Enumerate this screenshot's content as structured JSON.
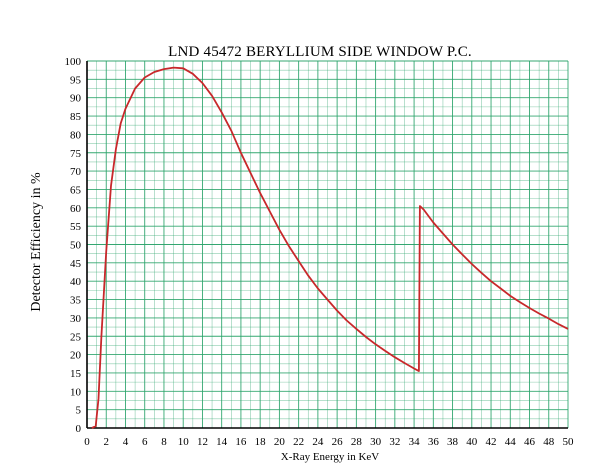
{
  "chart_data": {
    "type": "line",
    "title": "LND 45472 BERYLLIUM SIDE WINDOW P.C.",
    "xlabel": "X-Ray Energy in KeV",
    "ylabel": "Detector Efficiency in %",
    "xlim": [
      0,
      50
    ],
    "ylim": [
      0,
      100
    ],
    "x_ticks": [
      "0",
      "2",
      "4",
      "6",
      "8",
      "10",
      "12",
      "14",
      "16",
      "18",
      "20",
      "22",
      "24",
      "26",
      "28",
      "30",
      "32",
      "34",
      "36",
      "38",
      "40",
      "42",
      "44",
      "46",
      "48",
      "50"
    ],
    "y_ticks": [
      "0",
      "5",
      "10",
      "15",
      "20",
      "25",
      "30",
      "35",
      "40",
      "45",
      "50",
      "55",
      "60",
      "65",
      "70",
      "75",
      "80",
      "85",
      "90",
      "95",
      "100"
    ],
    "grid": true,
    "colors": {
      "grid": "#2aa36a",
      "line": "#c8282b"
    },
    "series": [
      {
        "x": [
          0.5,
          0.9,
          1.2,
          1.5,
          2,
          2.5,
          3,
          3.5,
          4,
          5,
          6,
          7,
          8,
          9,
          10,
          11,
          12,
          13,
          14,
          15,
          16,
          17,
          18,
          19,
          20,
          21,
          22,
          23,
          24,
          25,
          26,
          27,
          28,
          29,
          30,
          31,
          32,
          33,
          34,
          34.5,
          34.6,
          35,
          36,
          37,
          38,
          39,
          40,
          41,
          42,
          43,
          44,
          45,
          46,
          47,
          48,
          49,
          50
        ],
        "y": [
          0,
          0.5,
          8,
          25,
          48,
          66,
          76,
          83,
          87,
          92.5,
          95.5,
          97,
          97.8,
          98.2,
          98,
          96.5,
          94,
          90.5,
          86,
          81,
          75,
          69.5,
          64,
          59,
          54,
          49.5,
          45.5,
          41.5,
          38,
          35,
          32,
          29.3,
          27,
          24.8,
          22.8,
          21,
          19.3,
          17.7,
          16.2,
          15.5,
          60.5,
          59.5,
          56,
          53,
          50,
          47.3,
          44.7,
          42.3,
          40,
          38,
          36,
          34.3,
          32.7,
          31.2,
          29.8,
          28.3,
          27
        ]
      }
    ]
  }
}
